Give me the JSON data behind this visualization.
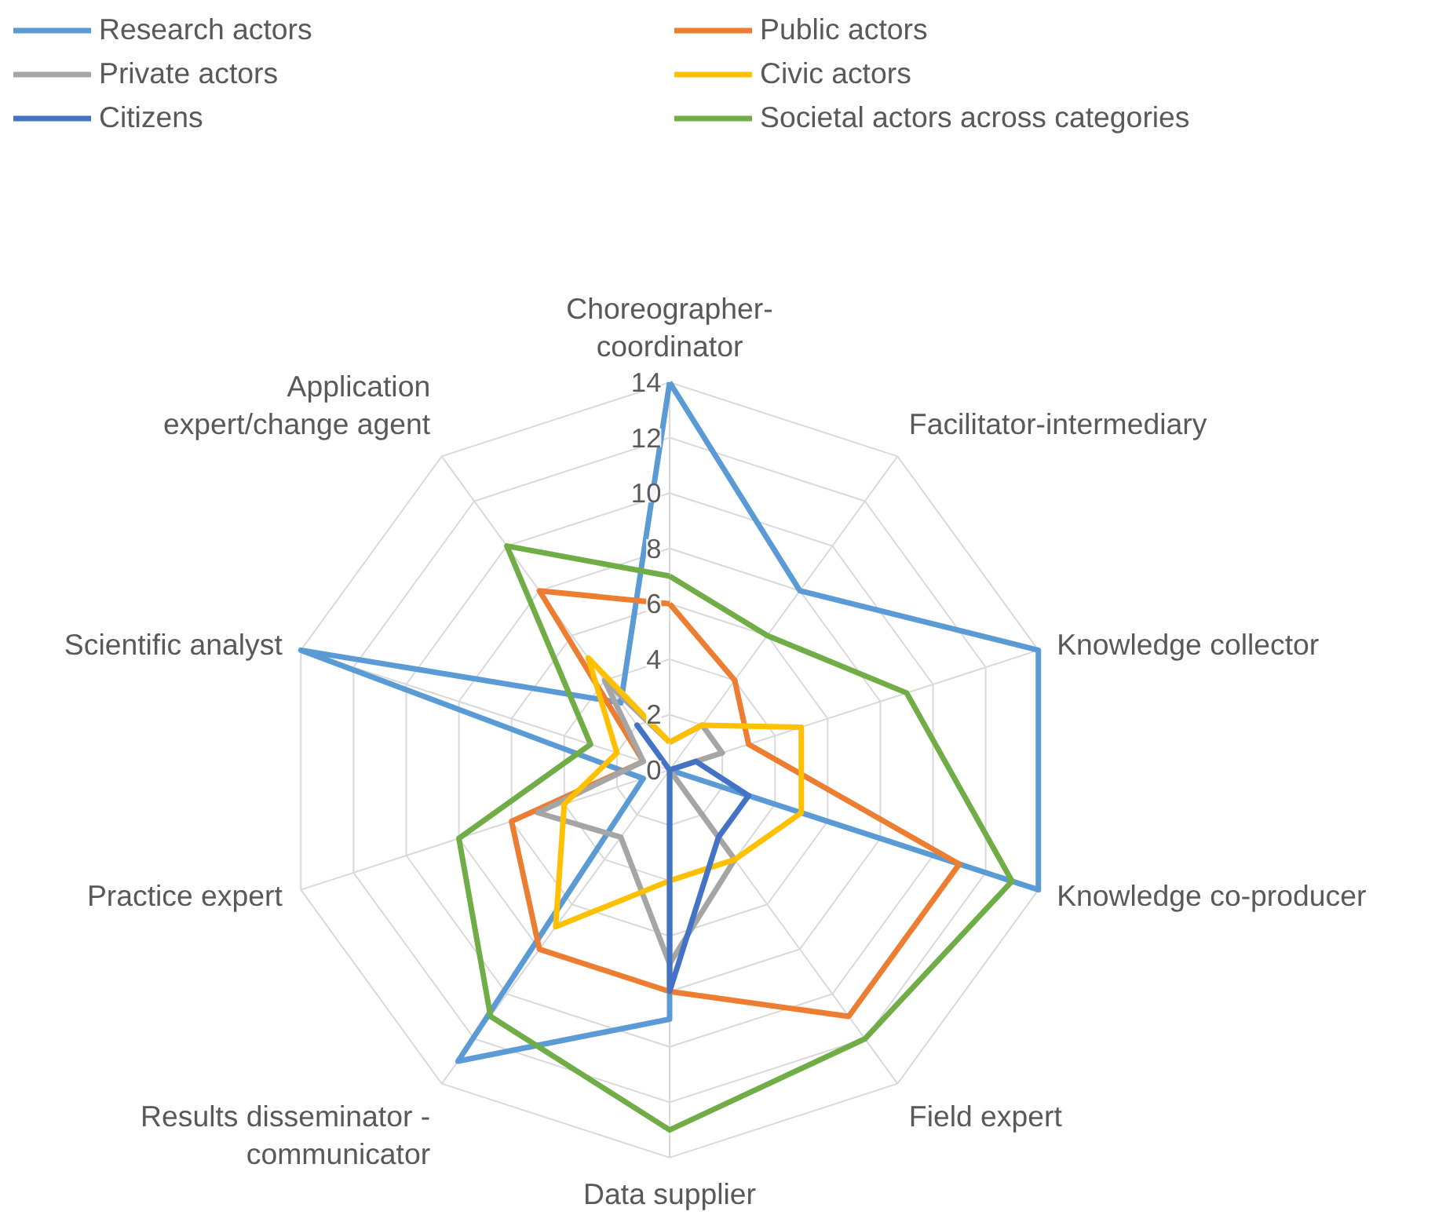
{
  "chart_data": {
    "type": "radar",
    "categories": [
      "Choreographer-\ncoordinator",
      "Facilitator-intermediary",
      "Knowledge collector",
      "Knowledge co-producer",
      "Field expert",
      "Data supplier",
      "Results disseminator -\ncommunicator",
      "Practice expert",
      "Scientific analyst",
      "Application\nexpert/change agent"
    ],
    "series": [
      {
        "name": "Research actors",
        "color": "#5b9bd5",
        "values": [
          14,
          8,
          14,
          14,
          0,
          9,
          13,
          1,
          14,
          3
        ]
      },
      {
        "name": "Public actors",
        "color": "#ed7d31",
        "values": [
          6,
          4,
          3,
          11,
          11,
          8,
          8,
          6,
          1,
          8
        ]
      },
      {
        "name": "Private actors",
        "color": "#a5a5a5",
        "values": [
          1,
          2,
          2,
          0,
          4,
          7,
          3,
          5,
          1,
          4
        ]
      },
      {
        "name": "Civic actors",
        "color": "#ffc000",
        "values": [
          1,
          2,
          5,
          5,
          4,
          4,
          7,
          4,
          2,
          5
        ]
      },
      {
        "name": "Citizens",
        "color": "#4472c4",
        "values": [
          0,
          0,
          1,
          3,
          3,
          8,
          0,
          0,
          0,
          2
        ]
      },
      {
        "name": "Societal actors across categories",
        "color": "#70ad47",
        "values": [
          7,
          6,
          9,
          13,
          12,
          13,
          11,
          8,
          3,
          10
        ]
      }
    ],
    "ylim": [
      0,
      14
    ],
    "yticks": [
      0,
      2,
      4,
      6,
      8,
      10,
      12,
      14
    ],
    "grid": true,
    "legend": "top",
    "marker": "none",
    "line_style": "solid"
  }
}
